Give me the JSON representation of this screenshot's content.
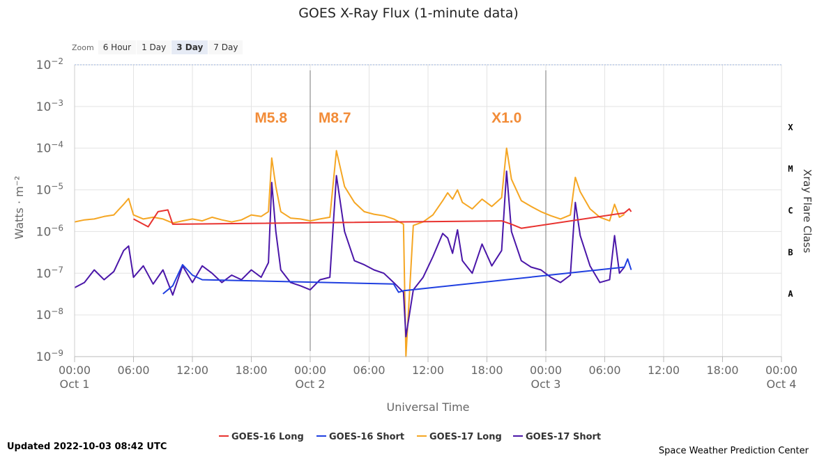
{
  "chart_data": {
    "type": "line",
    "title": "GOES X-Ray Flux (1-minute data)",
    "xlabel": "Universal Time",
    "ylabel": "Watts · m⁻²",
    "right_axis_label": "Xray Flare Class",
    "y_scale": "log",
    "ylim": [
      1e-09,
      0.01
    ],
    "y_ticks": [
      {
        "base": "10",
        "exp": "−9",
        "value": 1e-09
      },
      {
        "base": "10",
        "exp": "−8",
        "value": 1e-08
      },
      {
        "base": "10",
        "exp": "−7",
        "value": 1e-07
      },
      {
        "base": "10",
        "exp": "−6",
        "value": 1e-06
      },
      {
        "base": "10",
        "exp": "−5",
        "value": 1e-05
      },
      {
        "base": "10",
        "exp": "−4",
        "value": 0.0001
      },
      {
        "base": "10",
        "exp": "−3",
        "value": 0.001
      },
      {
        "base": "10",
        "exp": "−2",
        "value": 0.01
      }
    ],
    "flare_classes": [
      {
        "label": "A",
        "value": 3.16e-08
      },
      {
        "label": "B",
        "value": 3.16e-07
      },
      {
        "label": "C",
        "value": 3.16e-06
      },
      {
        "label": "M",
        "value": 3.16e-05
      },
      {
        "label": "X",
        "value": 0.000316
      }
    ],
    "xlim": [
      "2022-10-01 00:00",
      "2022-10-04 00:00"
    ],
    "x_ticks": [
      {
        "t": "2022-10-01 00:00",
        "label": "00:00",
        "date": "Oct 1"
      },
      {
        "t": "2022-10-01 06:00",
        "label": "06:00",
        "date": ""
      },
      {
        "t": "2022-10-01 12:00",
        "label": "12:00",
        "date": ""
      },
      {
        "t": "2022-10-01 18:00",
        "label": "18:00",
        "date": ""
      },
      {
        "t": "2022-10-02 00:00",
        "label": "00:00",
        "date": "Oct 2"
      },
      {
        "t": "2022-10-02 06:00",
        "label": "06:00",
        "date": ""
      },
      {
        "t": "2022-10-02 12:00",
        "label": "12:00",
        "date": ""
      },
      {
        "t": "2022-10-02 18:00",
        "label": "18:00",
        "date": ""
      },
      {
        "t": "2022-10-03 00:00",
        "label": "00:00",
        "date": "Oct 3"
      },
      {
        "t": "2022-10-03 06:00",
        "label": "06:00",
        "date": ""
      },
      {
        "t": "2022-10-03 12:00",
        "label": "12:00",
        "date": ""
      },
      {
        "t": "2022-10-03 18:00",
        "label": "18:00",
        "date": ""
      },
      {
        "t": "2022-10-04 00:00",
        "label": "00:00",
        "date": "Oct 4"
      }
    ],
    "day_lines": [
      "2022-10-02 00:00",
      "2022-10-03 00:00"
    ],
    "annotations": [
      {
        "text": "M5.8",
        "t": "2022-10-01 20:00"
      },
      {
        "text": "M8.7",
        "t": "2022-10-02 02:30"
      },
      {
        "text": "X1.0",
        "t": "2022-10-02 20:00"
      }
    ],
    "annotation_color": "#f28c38",
    "grid": true,
    "legend_position": "bottom",
    "series": [
      {
        "name": "GOES-16 Long",
        "color": "#e8322f",
        "x": [
          "2022-10-01 06:00",
          "2022-10-01 07:30",
          "2022-10-01 08:30",
          "2022-10-01 09:30",
          "2022-10-01 10:00",
          "2022-10-02 19:30",
          "2022-10-02 20:30",
          "2022-10-02 21:30",
          "2022-10-03 08:00",
          "2022-10-03 08:30",
          "2022-10-03 08:42"
        ],
        "y": [
          2e-06,
          1.3e-06,
          3e-06,
          3.3e-06,
          1.5e-06,
          1.8e-06,
          1.5e-06,
          1.2e-06,
          2.8e-06,
          3.5e-06,
          3e-06
        ]
      },
      {
        "name": "GOES-16 Short",
        "color": "#1f3fe0",
        "x": [
          "2022-10-01 09:00",
          "2022-10-01 10:00",
          "2022-10-01 11:00",
          "2022-10-01 12:00",
          "2022-10-01 13:00",
          "2022-10-02 08:30",
          "2022-10-02 09:00",
          "2022-10-02 09:30",
          "2022-10-03 08:00",
          "2022-10-03 08:20",
          "2022-10-03 08:42"
        ],
        "y": [
          3.2e-08,
          5e-08,
          1.6e-07,
          9e-08,
          7e-08,
          5.5e-08,
          3.5e-08,
          3.8e-08,
          1.4e-07,
          2.2e-07,
          1.2e-07
        ]
      },
      {
        "name": "GOES-17 Long",
        "color": "#f5a623",
        "x": [
          "2022-10-01 00:00",
          "2022-10-01 01:00",
          "2022-10-01 02:00",
          "2022-10-01 03:00",
          "2022-10-01 04:00",
          "2022-10-01 05:00",
          "2022-10-01 05:30",
          "2022-10-01 06:00",
          "2022-10-01 07:00",
          "2022-10-01 08:00",
          "2022-10-01 09:00",
          "2022-10-01 10:00",
          "2022-10-01 11:00",
          "2022-10-01 12:00",
          "2022-10-01 13:00",
          "2022-10-01 14:00",
          "2022-10-01 15:00",
          "2022-10-01 16:00",
          "2022-10-01 17:00",
          "2022-10-01 18:00",
          "2022-10-01 19:00",
          "2022-10-01 19:45",
          "2022-10-01 20:05",
          "2022-10-01 20:30",
          "2022-10-01 21:00",
          "2022-10-01 22:00",
          "2022-10-01 23:00",
          "2022-10-02 00:00",
          "2022-10-02 01:00",
          "2022-10-02 02:00",
          "2022-10-02 02:40",
          "2022-10-02 03:30",
          "2022-10-02 04:30",
          "2022-10-02 05:30",
          "2022-10-02 06:30",
          "2022-10-02 07:30",
          "2022-10-02 08:30",
          "2022-10-02 09:30",
          "2022-10-02 09:45",
          "2022-10-02 10:30",
          "2022-10-02 11:30",
          "2022-10-02 12:30",
          "2022-10-02 13:30",
          "2022-10-02 14:00",
          "2022-10-02 14:30",
          "2022-10-02 15:00",
          "2022-10-02 15:30",
          "2022-10-02 16:30",
          "2022-10-02 17:30",
          "2022-10-02 18:30",
          "2022-10-02 19:30",
          "2022-10-02 20:00",
          "2022-10-02 20:30",
          "2022-10-02 21:30",
          "2022-10-02 22:30",
          "2022-10-02 23:30",
          "2022-10-03 00:30",
          "2022-10-03 01:30",
          "2022-10-03 02:30",
          "2022-10-03 03:00",
          "2022-10-03 03:30",
          "2022-10-03 04:30",
          "2022-10-03 05:30",
          "2022-10-03 06:30",
          "2022-10-03 07:00",
          "2022-10-03 07:30",
          "2022-10-03 08:00"
        ],
        "y": [
          1.7e-06,
          1.9e-06,
          2e-06,
          2.3e-06,
          2.5e-06,
          4.5e-06,
          6.2e-06,
          2.5e-06,
          2e-06,
          2.2e-06,
          2e-06,
          1.6e-06,
          1.8e-06,
          2e-06,
          1.8e-06,
          2.2e-06,
          1.9e-06,
          1.7e-06,
          1.9e-06,
          2.5e-06,
          2.3e-06,
          3e-06,
          5.8e-05,
          1.2e-05,
          3e-06,
          2.1e-06,
          2e-06,
          1.8e-06,
          2e-06,
          2.2e-06,
          8.7e-05,
          1.2e-05,
          5e-06,
          3e-06,
          2.6e-06,
          2.4e-06,
          2e-06,
          1.5e-06,
          1e-09,
          1.4e-06,
          1.7e-06,
          2.5e-06,
          5.5e-06,
          8.5e-06,
          6e-06,
          1e-05,
          5e-06,
          3.5e-06,
          6e-06,
          4e-06,
          6.5e-06,
          0.0001,
          1.8e-05,
          5.5e-06,
          4e-06,
          3e-06,
          2.4e-06,
          2e-06,
          2.5e-06,
          2e-05,
          9e-06,
          3.5e-06,
          2.2e-06,
          1.8e-06,
          4.5e-06,
          2.2e-06,
          2.6e-06
        ]
      },
      {
        "name": "GOES-17 Short",
        "color": "#4a16a8",
        "x": [
          "2022-10-01 00:00",
          "2022-10-01 01:00",
          "2022-10-01 02:00",
          "2022-10-01 03:00",
          "2022-10-01 04:00",
          "2022-10-01 05:00",
          "2022-10-01 05:30",
          "2022-10-01 06:00",
          "2022-10-01 07:00",
          "2022-10-01 08:00",
          "2022-10-01 09:00",
          "2022-10-01 10:00",
          "2022-10-01 11:00",
          "2022-10-01 12:00",
          "2022-10-01 13:00",
          "2022-10-01 14:00",
          "2022-10-01 15:00",
          "2022-10-01 16:00",
          "2022-10-01 17:00",
          "2022-10-01 18:00",
          "2022-10-01 19:00",
          "2022-10-01 19:45",
          "2022-10-01 20:05",
          "2022-10-01 20:30",
          "2022-10-01 21:00",
          "2022-10-01 22:00",
          "2022-10-01 23:00",
          "2022-10-02 00:00",
          "2022-10-02 01:00",
          "2022-10-02 02:00",
          "2022-10-02 02:40",
          "2022-10-02 03:30",
          "2022-10-02 04:30",
          "2022-10-02 05:30",
          "2022-10-02 06:30",
          "2022-10-02 07:30",
          "2022-10-02 08:30",
          "2022-10-02 09:30",
          "2022-10-02 09:45",
          "2022-10-02 10:30",
          "2022-10-02 11:30",
          "2022-10-02 12:30",
          "2022-10-02 13:30",
          "2022-10-02 14:00",
          "2022-10-02 14:30",
          "2022-10-02 15:00",
          "2022-10-02 15:30",
          "2022-10-02 16:30",
          "2022-10-02 17:30",
          "2022-10-02 18:30",
          "2022-10-02 19:30",
          "2022-10-02 20:00",
          "2022-10-02 20:30",
          "2022-10-02 21:30",
          "2022-10-02 22:30",
          "2022-10-02 23:30",
          "2022-10-03 00:30",
          "2022-10-03 01:30",
          "2022-10-03 02:30",
          "2022-10-03 03:00",
          "2022-10-03 03:30",
          "2022-10-03 04:30",
          "2022-10-03 05:30",
          "2022-10-03 06:30",
          "2022-10-03 07:00",
          "2022-10-03 07:30",
          "2022-10-03 08:00"
        ],
        "y": [
          4.5e-08,
          6e-08,
          1.2e-07,
          7e-08,
          1.1e-07,
          3.5e-07,
          4.5e-07,
          8e-08,
          1.5e-07,
          5.5e-08,
          1.2e-07,
          3e-08,
          1.5e-07,
          6e-08,
          1.5e-07,
          1e-07,
          6e-08,
          9e-08,
          7e-08,
          1.2e-07,
          8e-08,
          1.8e-07,
          1.5e-05,
          1e-06,
          1.2e-07,
          6e-08,
          5e-08,
          4e-08,
          7e-08,
          8e-08,
          2.2e-05,
          1e-06,
          2e-07,
          1.6e-07,
          1.2e-07,
          1e-07,
          6e-08,
          3.5e-08,
          3e-09,
          4e-08,
          8e-08,
          2.5e-07,
          9e-07,
          7e-07,
          3e-07,
          1.1e-06,
          2e-07,
          1e-07,
          5e-07,
          1.5e-07,
          3.5e-07,
          2.8e-05,
          1e-06,
          2e-07,
          1.4e-07,
          1.2e-07,
          8e-08,
          6e-08,
          9e-08,
          5e-06,
          8e-07,
          1.5e-07,
          6e-08,
          7e-08,
          8e-07,
          1e-07,
          1.4e-07
        ]
      }
    ]
  },
  "zoom": {
    "label": "Zoom",
    "buttons": [
      "6 Hour",
      "1 Day",
      "3 Day",
      "7 Day"
    ],
    "active": "3 Day"
  },
  "footer": {
    "updated": "Updated 2022-10-03 08:42 UTC",
    "credit": "Space Weather Prediction Center"
  }
}
